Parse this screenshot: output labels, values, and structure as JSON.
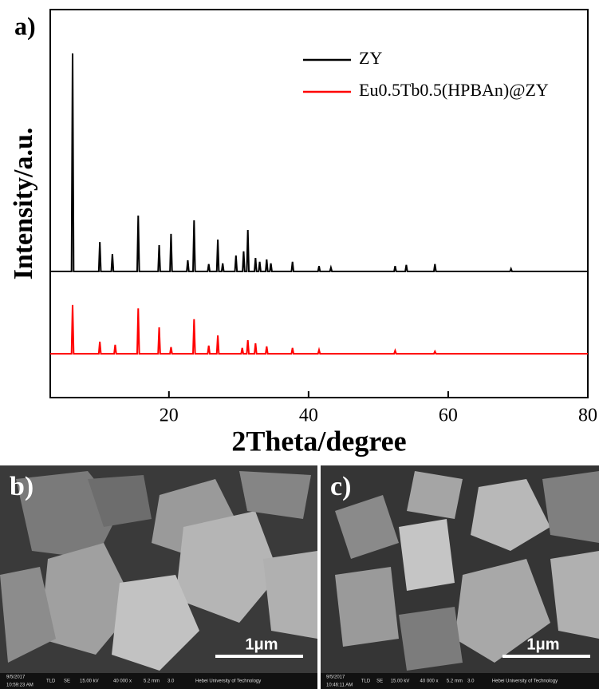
{
  "chart_data": {
    "type": "line",
    "panel_label": "a)",
    "xlabel": "2Theta/degree",
    "ylabel": "Intensity/a.u.",
    "xlim": [
      3,
      80
    ],
    "xticks": [
      20,
      40,
      60,
      80
    ],
    "ylim": [
      0,
      100
    ],
    "legend": "upper right",
    "series": [
      {
        "name": "ZY",
        "color": "#000000",
        "x": [
          3,
          6.05,
          6.2,
          6.35,
          9.95,
          10.1,
          10.25,
          11.75,
          11.9,
          12.05,
          15.45,
          15.6,
          15.75,
          18.45,
          18.6,
          18.75,
          20.15,
          20.3,
          20.45,
          22.55,
          22.7,
          22.85,
          23.45,
          23.6,
          23.75,
          25.55,
          25.7,
          25.85,
          26.85,
          27.0,
          27.15,
          27.55,
          27.7,
          27.85,
          29.45,
          29.6,
          29.75,
          30.55,
          30.7,
          30.85,
          31.15,
          31.3,
          31.45,
          32.25,
          32.4,
          32.55,
          32.85,
          33.0,
          33.15,
          33.85,
          34.0,
          34.15,
          34.45,
          34.6,
          34.75,
          37.55,
          37.7,
          37.85,
          41.35,
          41.5,
          41.65,
          43.05,
          43.2,
          43.35,
          52.25,
          52.4,
          52.55,
          53.85,
          54.0,
          54.15,
          57.95,
          58.1,
          58.25,
          68.85,
          69.0,
          69.15,
          80
        ],
        "values": [
          32.5,
          32.5,
          88.7,
          32.5,
          32.5,
          40.1,
          32.5,
          32.5,
          37.0,
          32.5,
          32.5,
          46.9,
          32.5,
          32.5,
          39.3,
          32.5,
          32.5,
          42.2,
          32.5,
          32.5,
          35.4,
          32.5,
          32.5,
          45.7,
          32.5,
          32.5,
          34.4,
          32.5,
          32.5,
          40.7,
          32.5,
          32.5,
          34.6,
          32.5,
          32.5,
          36.6,
          32.5,
          32.5,
          37.7,
          32.5,
          32.5,
          43.2,
          32.5,
          32.5,
          36.0,
          32.5,
          32.5,
          35.0,
          32.5,
          32.5,
          35.6,
          32.5,
          32.5,
          34.6,
          32.5,
          32.5,
          35.0,
          32.5,
          32.5,
          33.9,
          32.5,
          32.5,
          33.5,
          32.5,
          32.5,
          33.9,
          32.5,
          32.5,
          34.2,
          32.5,
          32.5,
          34.4,
          32.5,
          32.5,
          33.2,
          32.5,
          32.5
        ]
      },
      {
        "name": "Eu0.5Tb0.5(HPBAn)@ZY",
        "color": "#ff0000",
        "x": [
          3,
          6.05,
          6.2,
          6.35,
          9.95,
          10.1,
          10.25,
          12.15,
          12.3,
          12.45,
          15.45,
          15.6,
          15.75,
          18.45,
          18.6,
          18.75,
          20.15,
          20.3,
          20.45,
          23.45,
          23.6,
          23.75,
          25.55,
          25.7,
          25.85,
          26.85,
          27.0,
          27.15,
          30.35,
          30.5,
          30.65,
          31.15,
          31.3,
          31.45,
          32.25,
          32.4,
          32.55,
          33.85,
          34.0,
          34.15,
          37.55,
          37.7,
          37.85,
          41.35,
          41.5,
          41.65,
          52.25,
          52.4,
          52.55,
          57.95,
          58.1,
          58.25,
          80
        ],
        "values": [
          11.3,
          11.3,
          23.9,
          11.3,
          11.3,
          14.4,
          11.3,
          11.3,
          13.6,
          11.3,
          11.3,
          23.0,
          11.3,
          11.3,
          18.1,
          11.3,
          11.3,
          13.0,
          11.3,
          11.3,
          20.2,
          11.3,
          11.3,
          13.4,
          11.3,
          11.3,
          16.0,
          11.3,
          11.3,
          12.8,
          11.3,
          11.3,
          14.8,
          11.3,
          11.3,
          14.0,
          11.3,
          11.3,
          13.2,
          11.3,
          11.3,
          12.8,
          11.3,
          11.3,
          12.3,
          11.3,
          11.3,
          12.1,
          11.3,
          11.3,
          11.9,
          11.3,
          11.3
        ]
      }
    ]
  },
  "panels": [
    {
      "label": "b)",
      "scale_bar": "1μm",
      "info": [
        "9/5/2017",
        "10:59:23 AM",
        "TLD",
        "SE",
        "15.00 kV",
        "40 000 x",
        "5.2 mm",
        "3.0",
        "Hebei University of Technology"
      ]
    },
    {
      "label": "c)",
      "scale_bar": "1μm",
      "info": [
        "9/5/2017",
        "10:46:11 AM",
        "TLD",
        "SE",
        "15.00 kV",
        "40 000 x",
        "5.2 mm",
        "3.0",
        "Hebei University of Technology"
      ]
    }
  ]
}
